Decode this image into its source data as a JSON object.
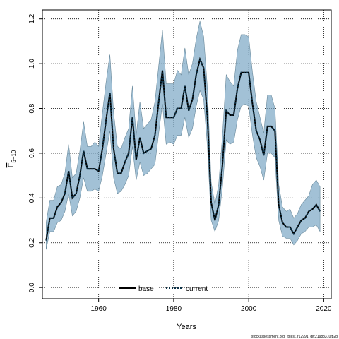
{
  "chart_data": {
    "type": "line",
    "title": "",
    "xlabel": "Years",
    "ylabel": "F",
    "ylabel_subscript": "5−10",
    "xlim": [
      1945,
      2022
    ],
    "ylim": [
      -0.05,
      1.24
    ],
    "x_ticks": [
      1960,
      1980,
      2000,
      2020
    ],
    "y_ticks": [
      0.0,
      0.2,
      0.4,
      0.6,
      0.8,
      1.0,
      1.2
    ],
    "grid": true,
    "legend_position": "bottom-center",
    "footer": "stockassessment.org, rptest, r12991, git:21983310fb2b",
    "colors": {
      "band": "#7aa7c4",
      "band_edge": "#6a8a9c",
      "current": "#0b3147",
      "base": "#000000"
    },
    "x": [
      1946,
      1947,
      1948,
      1949,
      1950,
      1951,
      1952,
      1953,
      1954,
      1955,
      1956,
      1957,
      1958,
      1959,
      1960,
      1961,
      1962,
      1963,
      1964,
      1965,
      1966,
      1967,
      1968,
      1969,
      1970,
      1971,
      1972,
      1973,
      1974,
      1975,
      1976,
      1977,
      1978,
      1979,
      1980,
      1981,
      1982,
      1983,
      1984,
      1985,
      1986,
      1987,
      1988,
      1989,
      1990,
      1991,
      1992,
      1993,
      1994,
      1995,
      1996,
      1997,
      1998,
      1999,
      2000,
      2001,
      2002,
      2003,
      2004,
      2005,
      2006,
      2007,
      2008,
      2009,
      2010,
      2011,
      2012,
      2013,
      2014,
      2015,
      2016,
      2017,
      2018,
      2019
    ],
    "series": [
      {
        "name": "base",
        "style": "solid",
        "values": [
          0.21,
          0.31,
          0.31,
          0.36,
          0.38,
          0.42,
          0.52,
          0.4,
          0.42,
          0.5,
          0.61,
          0.53,
          0.53,
          0.53,
          0.52,
          0.62,
          0.75,
          0.87,
          0.62,
          0.51,
          0.51,
          0.56,
          0.6,
          0.76,
          0.57,
          0.67,
          0.6,
          0.61,
          0.62,
          0.68,
          0.83,
          0.97,
          0.76,
          0.76,
          0.76,
          0.8,
          0.8,
          0.9,
          0.79,
          0.84,
          0.95,
          1.02,
          0.98,
          0.76,
          0.38,
          0.3,
          0.37,
          0.55,
          0.79,
          0.77,
          0.77,
          0.89,
          0.96,
          0.96,
          0.96,
          0.82,
          0.7,
          0.66,
          0.59,
          0.72,
          0.72,
          0.7,
          0.37,
          0.29,
          0.27,
          0.27,
          0.24,
          0.27,
          0.3,
          0.31,
          0.34,
          0.35,
          0.37,
          0.34
        ]
      },
      {
        "name": "current",
        "style": "dotted",
        "values": [
          0.21,
          0.31,
          0.31,
          0.36,
          0.38,
          0.42,
          0.52,
          0.4,
          0.42,
          0.5,
          0.61,
          0.53,
          0.53,
          0.53,
          0.52,
          0.62,
          0.75,
          0.87,
          0.62,
          0.51,
          0.51,
          0.56,
          0.6,
          0.76,
          0.57,
          0.67,
          0.6,
          0.61,
          0.62,
          0.68,
          0.83,
          0.97,
          0.76,
          0.76,
          0.76,
          0.8,
          0.8,
          0.9,
          0.79,
          0.84,
          0.95,
          1.02,
          0.98,
          0.76,
          0.38,
          0.3,
          0.37,
          0.55,
          0.79,
          0.77,
          0.77,
          0.89,
          0.96,
          0.96,
          0.96,
          0.82,
          0.7,
          0.66,
          0.59,
          0.72,
          0.72,
          0.7,
          0.37,
          0.29,
          0.27,
          0.27,
          0.24,
          0.27,
          0.3,
          0.31,
          0.34,
          0.35,
          0.37,
          0.34
        ]
      }
    ],
    "band_upper": [
      0.29,
      0.39,
      0.39,
      0.45,
      0.46,
      0.51,
      0.64,
      0.49,
      0.51,
      0.61,
      0.74,
      0.63,
      0.63,
      0.65,
      0.63,
      0.78,
      0.92,
      1.04,
      0.78,
      0.63,
      0.62,
      0.67,
      0.71,
      0.9,
      0.68,
      0.83,
      0.71,
      0.73,
      0.75,
      0.83,
      0.99,
      1.15,
      0.91,
      0.91,
      0.91,
      0.97,
      0.95,
      1.07,
      0.95,
      1.0,
      1.11,
      1.19,
      1.12,
      0.89,
      0.47,
      0.37,
      0.46,
      0.68,
      0.95,
      0.92,
      0.9,
      1.06,
      1.13,
      1.13,
      1.12,
      0.96,
      0.83,
      0.76,
      0.69,
      0.86,
      0.86,
      0.8,
      0.46,
      0.36,
      0.34,
      0.35,
      0.31,
      0.33,
      0.37,
      0.39,
      0.41,
      0.46,
      0.48,
      0.45
    ],
    "band_lower": [
      0.17,
      0.25,
      0.25,
      0.29,
      0.3,
      0.34,
      0.42,
      0.32,
      0.34,
      0.4,
      0.49,
      0.43,
      0.43,
      0.44,
      0.43,
      0.5,
      0.6,
      0.7,
      0.49,
      0.42,
      0.43,
      0.46,
      0.5,
      0.63,
      0.48,
      0.56,
      0.5,
      0.51,
      0.53,
      0.55,
      0.69,
      0.82,
      0.64,
      0.65,
      0.64,
      0.68,
      0.68,
      0.76,
      0.67,
      0.71,
      0.81,
      0.88,
      0.84,
      0.63,
      0.3,
      0.25,
      0.3,
      0.45,
      0.66,
      0.64,
      0.65,
      0.75,
      0.81,
      0.82,
      0.81,
      0.68,
      0.58,
      0.54,
      0.48,
      0.6,
      0.6,
      0.58,
      0.3,
      0.23,
      0.22,
      0.22,
      0.19,
      0.21,
      0.24,
      0.25,
      0.27,
      0.27,
      0.28,
      0.25
    ]
  }
}
